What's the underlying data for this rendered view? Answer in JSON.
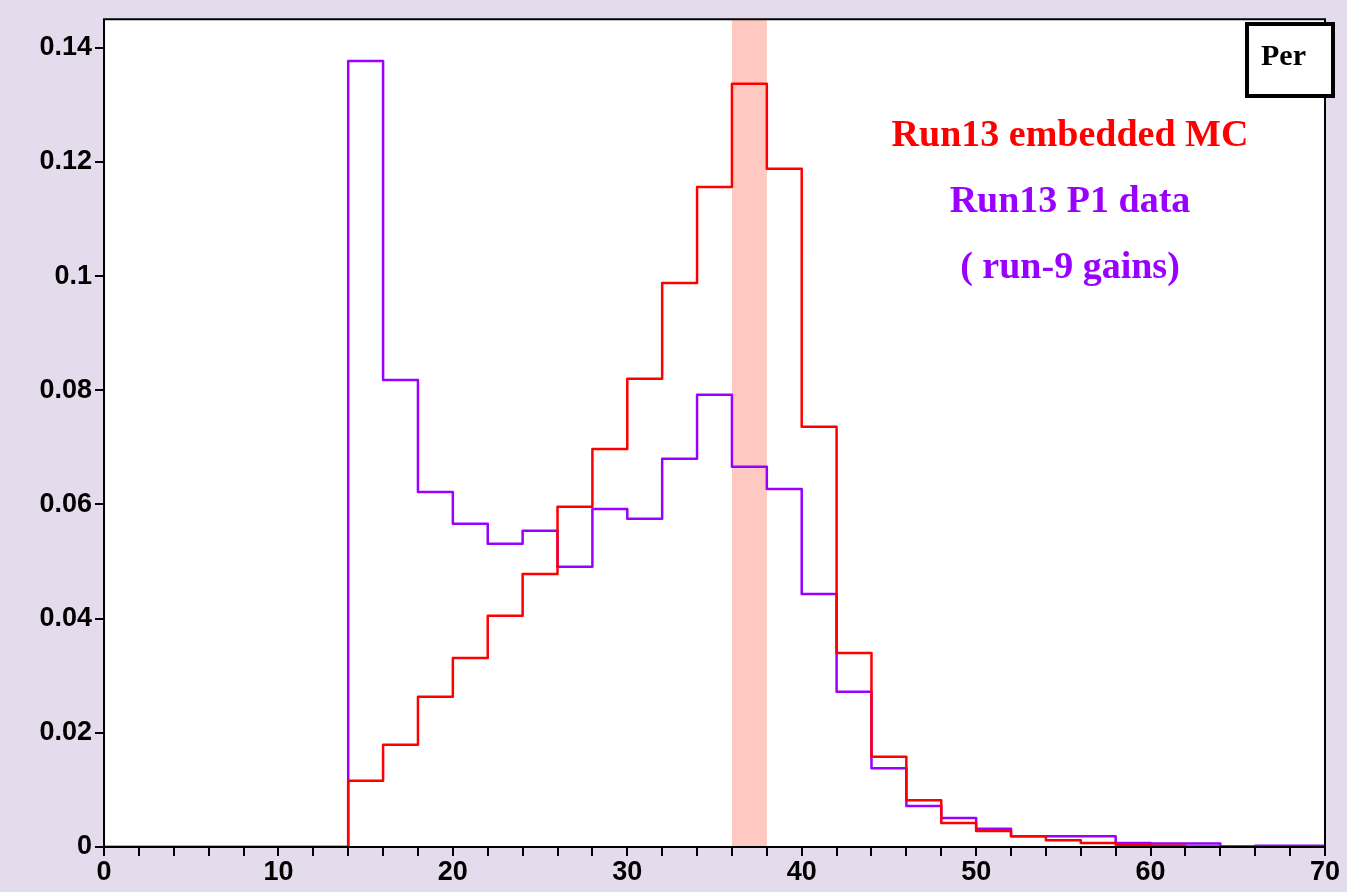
{
  "chart_data": {
    "type": "histogram",
    "bins": [
      0,
      2,
      4,
      6,
      8,
      10,
      12,
      14,
      16,
      18,
      20,
      22,
      24,
      26,
      28,
      30,
      32,
      34,
      36,
      38,
      40,
      42,
      44,
      46,
      48,
      50,
      52,
      54,
      56,
      58,
      60,
      62,
      64,
      66,
      68,
      70
    ],
    "series": [
      {
        "name": "Run13 embedded MC",
        "color": "#ff0000",
        "values": [
          0,
          0,
          0,
          0,
          0,
          0,
          0,
          0.0116,
          0.0179,
          0.0263,
          0.0331,
          0.0405,
          0.0478,
          0.0596,
          0.0697,
          0.082,
          0.0988,
          0.1156,
          0.1337,
          0.1188,
          0.0736,
          0.034,
          0.0158,
          0.0082,
          0.0042,
          0.0028,
          0.0019,
          0.0012,
          0.0007,
          0.0004,
          0.0002,
          0.0001,
          0.0001,
          0.0001,
          0.0001
        ]
      },
      {
        "name": "Run13 P1 data",
        "color": "#9900ff",
        "values": [
          0,
          0,
          0,
          0,
          0,
          0,
          0,
          0.1377,
          0.0818,
          0.0622,
          0.0566,
          0.0531,
          0.0554,
          0.0491,
          0.0592,
          0.0575,
          0.068,
          0.0792,
          0.0666,
          0.0627,
          0.0443,
          0.0272,
          0.0138,
          0.0072,
          0.0051,
          0.0032,
          0.0019,
          0.0019,
          0.0019,
          0.0007,
          0.0006,
          0.0006,
          0.0001,
          0.0002,
          0.0002
        ]
      }
    ],
    "annotations": [
      "( run-9 gains)",
      "Per"
    ],
    "bands": [
      {
        "axis": "x",
        "from": 36,
        "to": 38,
        "color": "#ffc8c0"
      }
    ],
    "xlim": [
      0,
      70
    ],
    "xticks": [
      0,
      {
        "value": 2,
        "label": null
      },
      {
        "value": 4,
        "label": null
      },
      {
        "value": 6,
        "label": null
      },
      {
        "value": 8,
        "label": null
      },
      10,
      {
        "value": 12,
        "label": null
      },
      {
        "value": 14,
        "label": null
      },
      {
        "value": 16,
        "label": null
      },
      {
        "value": 18,
        "label": null
      },
      20,
      {
        "value": 22,
        "label": null
      },
      {
        "value": 24,
        "label": null
      },
      {
        "value": 26,
        "label": null
      },
      {
        "value": 28,
        "label": null
      },
      30,
      {
        "value": 32,
        "label": null
      },
      {
        "value": 34,
        "label": null
      },
      {
        "value": 36,
        "label": null
      },
      {
        "value": 38,
        "label": null
      },
      40,
      {
        "value": 42,
        "label": null
      },
      {
        "value": 44,
        "label": null
      },
      {
        "value": 46,
        "label": null
      },
      {
        "value": 48,
        "label": null
      },
      50,
      {
        "value": 52,
        "label": null
      },
      {
        "value": 54,
        "label": null
      },
      {
        "value": 56,
        "label": null
      },
      {
        "value": 58,
        "label": null
      },
      60,
      {
        "value": 62,
        "label": null
      },
      {
        "value": 64,
        "label": null
      },
      {
        "value": 66,
        "label": null
      },
      {
        "value": 68,
        "label": null
      },
      70
    ],
    "ylim": [
      0,
      0.145
    ],
    "yticks": [
      0,
      0.02,
      0.04,
      0.06,
      0.08,
      0.1,
      0.12,
      0.14
    ],
    "grid": false,
    "legend": false
  }
}
